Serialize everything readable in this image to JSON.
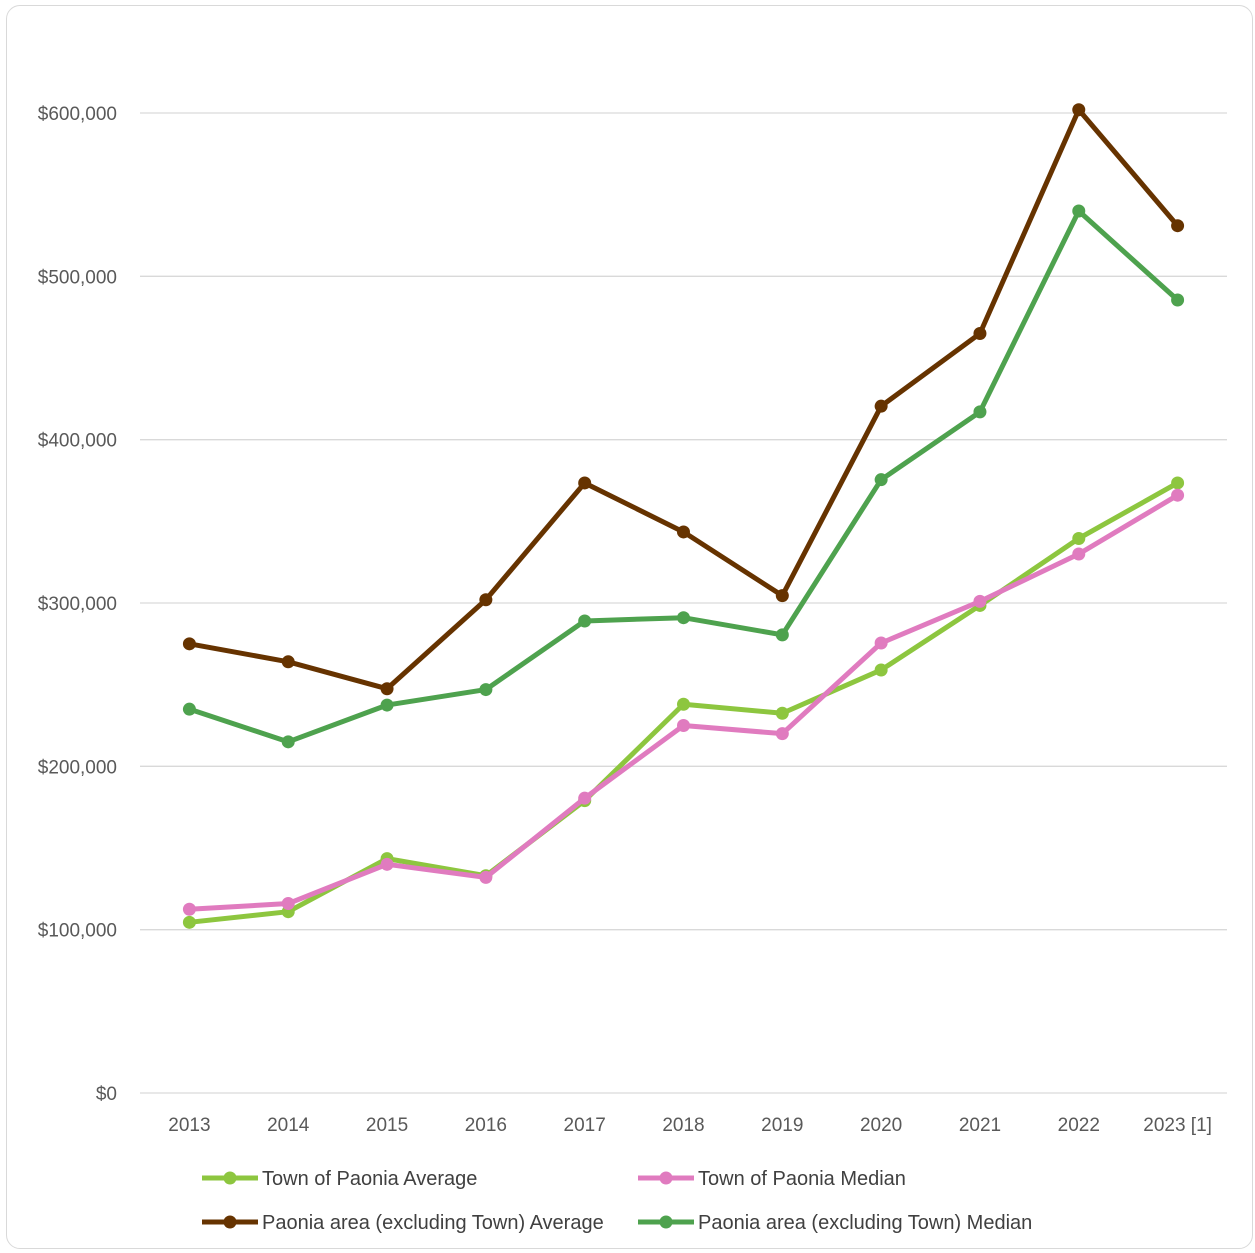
{
  "chart_data": {
    "type": "line",
    "title": "",
    "xlabel": "",
    "ylabel": "",
    "categories": [
      "2013",
      "2014",
      "2015",
      "2016",
      "2017",
      "2018",
      "2019",
      "2020",
      "2021",
      "2022",
      "2023 [1]"
    ],
    "ylim": [
      0,
      600000
    ],
    "ytick_labels": [
      "$0",
      "$100,000",
      "$200,000",
      "$300,000",
      "$400,000",
      "$500,000",
      "$600,000"
    ],
    "grid": true,
    "legend_position": "bottom",
    "series": [
      {
        "name": "Town of Paonia Average",
        "color": "#8dc63f",
        "values": [
          104500,
          111000,
          143500,
          133000,
          179000,
          238000,
          232500,
          259000,
          298500,
          339500,
          373500
        ]
      },
      {
        "name": "Town of Paonia Median",
        "color": "#e07bbf",
        "values": [
          112500,
          116000,
          140000,
          132000,
          180500,
          225000,
          220000,
          275500,
          301000,
          330000,
          366000
        ]
      },
      {
        "name": "Paonia area (excluding Town) Average",
        "color": "#663300",
        "values": [
          275000,
          264000,
          247500,
          302000,
          373500,
          343500,
          304500,
          420500,
          465000,
          602000,
          531000
        ]
      },
      {
        "name": "Paonia area (excluding Town) Median",
        "color": "#4ea24e",
        "values": [
          235000,
          215000,
          237500,
          247000,
          289000,
          291000,
          280500,
          375500,
          417000,
          540000,
          485500
        ]
      }
    ]
  }
}
